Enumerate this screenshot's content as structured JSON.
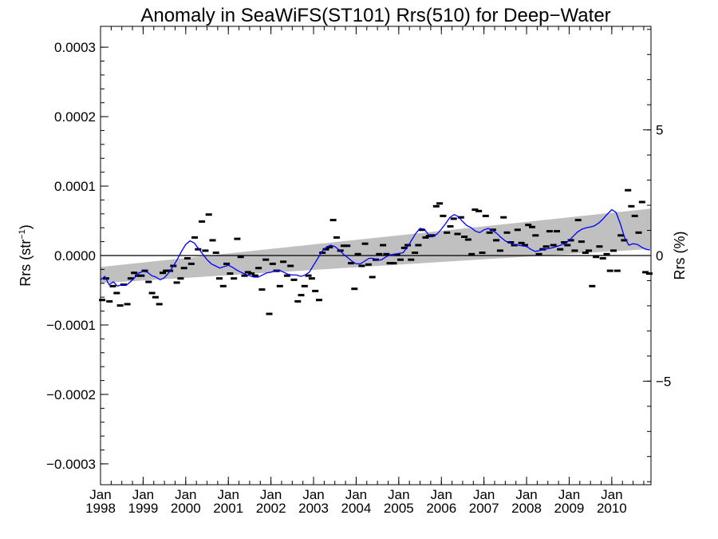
{
  "chart_data": {
    "type": "scatter",
    "title": "Anomaly in SeaWiFS(ST101) Rrs(510) for Deep−Water",
    "ylabel_left": "Rrs (str",
    "ylabel_left_sup": "−1",
    "ylabel_left_close": ")",
    "ylabel_right": "Rrs (%)",
    "xlim": [
      1998.0,
      2010.92
    ],
    "ylim": [
      -0.00033,
      0.00033
    ],
    "ylim_right": [
      -9.12,
      9.12
    ],
    "grid": false,
    "x_ticks": [
      {
        "x": 1998,
        "month": "Jan",
        "year": "1998"
      },
      {
        "x": 1999,
        "month": "Jan",
        "year": "1999"
      },
      {
        "x": 2000,
        "month": "Jan",
        "year": "2000"
      },
      {
        "x": 2001,
        "month": "Jan",
        "year": "2001"
      },
      {
        "x": 2002,
        "month": "Jan",
        "year": "2002"
      },
      {
        "x": 2003,
        "month": "Jan",
        "year": "2003"
      },
      {
        "x": 2004,
        "month": "Jan",
        "year": "2004"
      },
      {
        "x": 2005,
        "month": "Jan",
        "year": "2005"
      },
      {
        "x": 2006,
        "month": "Jan",
        "year": "2006"
      },
      {
        "x": 2007,
        "month": "Jan",
        "year": "2007"
      },
      {
        "x": 2008,
        "month": "Jan",
        "year": "2008"
      },
      {
        "x": 2009,
        "month": "Jan",
        "year": "2009"
      },
      {
        "x": 2010,
        "month": "Jan",
        "year": "2010"
      }
    ],
    "y_ticks_left": [
      {
        "value": 0.0003,
        "label": "0.0003"
      },
      {
        "value": 0.0002,
        "label": "0.0002"
      },
      {
        "value": 0.0001,
        "label": "0.0001"
      },
      {
        "value": 0.0,
        "label": "0.0000"
      },
      {
        "value": -0.0001,
        "label": "−0.0001"
      },
      {
        "value": -0.0002,
        "label": "−0.0002"
      },
      {
        "value": -0.0003,
        "label": "−0.0003"
      }
    ],
    "y_ticks_right": [
      {
        "value": 5,
        "label": "5"
      },
      {
        "value": 0,
        "label": "0"
      },
      {
        "value": -5,
        "label": "−5"
      }
    ],
    "trend_band": {
      "x": [
        1998.0,
        2010.92
      ],
      "lower": [
        -3.98e-05,
        9.5e-06
      ],
      "upper": [
        -1.65e-05,
        6.75e-05
      ],
      "color": "#c0c0c0"
    },
    "zero_line": 0,
    "series": [
      {
        "kind": "points",
        "color": "#000000",
        "x": [
          1998.04,
          1998.13,
          1998.21,
          1998.29,
          1998.38,
          1998.46,
          1998.54,
          1998.63,
          1998.71,
          1998.79,
          1998.88,
          1998.96,
          1999.04,
          1999.13,
          1999.21,
          1999.29,
          1999.38,
          1999.46,
          1999.54,
          1999.63,
          1999.71,
          1999.79,
          1999.88,
          1999.96,
          2000.04,
          2000.13,
          2000.21,
          2000.29,
          2000.38,
          2000.46,
          2000.54,
          2000.63,
          2000.71,
          2000.79,
          2000.88,
          2000.96,
          2001.04,
          2001.13,
          2001.21,
          2001.29,
          2001.38,
          2001.46,
          2001.54,
          2001.63,
          2001.71,
          2001.79,
          2001.88,
          2001.96,
          2002.04,
          2002.13,
          2002.21,
          2002.29,
          2002.38,
          2002.46,
          2002.54,
          2002.63,
          2002.71,
          2002.79,
          2002.88,
          2002.96,
          2003.04,
          2003.13,
          2003.21,
          2003.29,
          2003.38,
          2003.46,
          2003.54,
          2003.63,
          2003.71,
          2003.79,
          2003.88,
          2003.96,
          2004.04,
          2004.13,
          2004.21,
          2004.29,
          2004.38,
          2004.46,
          2004.54,
          2004.63,
          2004.71,
          2004.79,
          2004.88,
          2004.96,
          2005.04,
          2005.13,
          2005.21,
          2005.29,
          2005.38,
          2005.46,
          2005.54,
          2005.63,
          2005.71,
          2005.79,
          2005.88,
          2005.96,
          2006.04,
          2006.13,
          2006.21,
          2006.29,
          2006.38,
          2006.46,
          2006.54,
          2006.63,
          2006.71,
          2006.79,
          2006.88,
          2006.96,
          2007.04,
          2007.13,
          2007.21,
          2007.29,
          2007.38,
          2007.46,
          2007.54,
          2007.63,
          2007.71,
          2007.79,
          2007.88,
          2007.96,
          2008.04,
          2008.13,
          2008.21,
          2008.29,
          2008.38,
          2008.46,
          2008.54,
          2008.63,
          2008.71,
          2008.79,
          2008.88,
          2008.96,
          2009.04,
          2009.13,
          2009.21,
          2009.29,
          2009.38,
          2009.46,
          2009.54,
          2009.63,
          2009.71,
          2009.79,
          2009.88,
          2009.96,
          2010.04,
          2010.13,
          2010.21,
          2010.29,
          2010.38,
          2010.46,
          2010.54,
          2010.63,
          2010.71,
          2010.79,
          2010.88
        ],
        "y": [
          -6.4e-05,
          -3.3e-05,
          -6.6e-05,
          -4.4e-05,
          -5.4e-05,
          -7.2e-05,
          -4.2e-05,
          -7e-05,
          -3.3e-05,
          -2.5e-05,
          -2.9e-05,
          -2.9e-05,
          -2.2e-05,
          -3.8e-05,
          -5.4e-05,
          -6e-05,
          -7e-05,
          -2.5e-05,
          -2.2e-05,
          -2.2e-05,
          -1.5e-05,
          -3.9e-05,
          -3.3e-05,
          -1.8e-05,
          -4e-06,
          -1.2e-05,
          2.6e-05,
          9e-06,
          4.9e-05,
          7e-06,
          5.9e-05,
          2.2e-05,
          4e-06,
          -3.3e-05,
          -4.4e-05,
          -1.2e-05,
          -2.6e-05,
          -3.3e-05,
          2.4e-05,
          -2e-06,
          -2.9e-05,
          -2.4e-05,
          -2.6e-05,
          -2.9e-05,
          -1.8e-05,
          -4.9e-05,
          -6e-06,
          -8.4e-05,
          -1.2e-05,
          -2.2e-05,
          -4.4e-05,
          -9e-06,
          -2.9e-05,
          -1.5e-05,
          -3.5e-05,
          -6.6e-05,
          -5.7e-05,
          -4.4e-05,
          -2.9e-05,
          -3.3e-05,
          -5.1e-05,
          -6.4e-05,
          4e-06,
          9e-06,
          1.2e-05,
          5.1e-05,
          2.6e-05,
          7e-06,
          1.4e-05,
          1.4e-05,
          -1.1e-05,
          -4.8e-05,
          2e-06,
          -1.5e-05,
          1.7e-05,
          -1.3e-05,
          -3.1e-05,
          -6e-06,
          2e-06,
          1.5e-05,
          2e-06,
          -1.1e-05,
          -1.1e-05,
          1e-06,
          -6e-06,
          1.1e-05,
          1.5e-05,
          -6e-06,
          4e-06,
          1.5e-05,
          3.7e-05,
          2.6e-05,
          2.8e-05,
          2.9e-05,
          7.1e-05,
          7.5e-05,
          5.7e-05,
          3.3e-05,
          4.2e-05,
          5.3e-05,
          3.1e-05,
          5.5e-05,
          2.7e-05,
          2.3e-05,
          2e-06,
          6.6e-05,
          6.4e-05,
          4e-06,
          5.7e-05,
          3.3e-05,
          3.7e-05,
          2.2e-05,
          7e-06,
          5.5e-05,
          3.3e-05,
          1.9e-05,
          1.5e-05,
          3.7e-05,
          1.8e-05,
          1.5e-05,
          4.4e-05,
          4.1e-05,
          2.9e-05,
          2e-06,
          9e-06,
          1.3e-05,
          3.5e-05,
          1.5e-05,
          3.5e-05,
          9e-06,
          1.9e-05,
          1.5e-05,
          2.2e-05,
          7e-06,
          5.1e-05,
          2e-05,
          4e-06,
          7e-06,
          -4.4e-05,
          -2e-06,
          1.3e-05,
          -4e-06,
          2e-06,
          -2.2e-05,
          7e-06,
          -2.2e-05,
          2.9e-05,
          2.2e-05,
          9.4e-05,
          7.1e-05,
          5.7e-05,
          3.3e-05,
          7.7e-05,
          -2.4e-05,
          -2.6e-05
        ]
      },
      {
        "kind": "line",
        "color": "#0000ff",
        "x": [
          1998.0,
          1998.1,
          1998.2,
          1998.3,
          1998.4,
          1998.5,
          1998.6,
          1998.7,
          1998.8,
          1998.9,
          1999.0,
          1999.1,
          1999.2,
          1999.3,
          1999.4,
          1999.5,
          1999.6,
          1999.7,
          1999.8,
          1999.9,
          2000.0,
          2000.1,
          2000.2,
          2000.3,
          2000.4,
          2000.5,
          2000.6,
          2000.7,
          2000.8,
          2000.9,
          2001.0,
          2001.1,
          2001.2,
          2001.3,
          2001.4,
          2001.5,
          2001.6,
          2001.7,
          2001.8,
          2001.9,
          2002.0,
          2002.1,
          2002.2,
          2002.3,
          2002.4,
          2002.5,
          2002.6,
          2002.7,
          2002.8,
          2002.9,
          2003.0,
          2003.1,
          2003.2,
          2003.3,
          2003.4,
          2003.5,
          2003.6,
          2003.7,
          2003.8,
          2003.9,
          2004.0,
          2004.1,
          2004.2,
          2004.3,
          2004.4,
          2004.5,
          2004.6,
          2004.7,
          2004.8,
          2004.9,
          2005.0,
          2005.1,
          2005.2,
          2005.3,
          2005.4,
          2005.5,
          2005.6,
          2005.7,
          2005.8,
          2005.9,
          2006.0,
          2006.1,
          2006.2,
          2006.3,
          2006.4,
          2006.5,
          2006.6,
          2006.7,
          2006.8,
          2006.9,
          2007.0,
          2007.1,
          2007.2,
          2007.3,
          2007.4,
          2007.5,
          2007.6,
          2007.7,
          2007.8,
          2007.9,
          2008.0,
          2008.1,
          2008.2,
          2008.3,
          2008.4,
          2008.5,
          2008.6,
          2008.7,
          2008.8,
          2008.9,
          2009.0,
          2009.1,
          2009.2,
          2009.3,
          2009.4,
          2009.5,
          2009.6,
          2009.7,
          2009.8,
          2009.9,
          2010.0,
          2010.1,
          2010.2,
          2010.3,
          2010.4,
          2010.5,
          2010.6,
          2010.7,
          2010.8,
          2010.9
        ],
        "y": [
          -3.5e-05,
          -3e-05,
          -4.2e-05,
          -3.8e-05,
          -4.4e-05,
          -4.2e-05,
          -4.3e-05,
          -3.8e-05,
          -3.2e-05,
          -2.5e-05,
          -2.3e-05,
          -2.4e-05,
          -2.9e-05,
          -3.1e-05,
          -3.5e-05,
          -3.2e-05,
          -2.5e-05,
          -1.6e-05,
          -6e-06,
          6e-06,
          1.6e-05,
          2.1e-05,
          1.8e-05,
          1e-05,
          2e-06,
          -6e-06,
          -1.2e-05,
          -1.5e-05,
          -1.8e-05,
          -1.6e-05,
          -1.4e-05,
          -1.7e-05,
          -2.1e-05,
          -2.4e-05,
          -2.7e-05,
          -2.9e-05,
          -3.1e-05,
          -3.1e-05,
          -2.8e-05,
          -2.5e-05,
          -2.4e-05,
          -2.2e-05,
          -2.1e-05,
          -2.4e-05,
          -2.7e-05,
          -2.8e-05,
          -2.8e-05,
          -3e-05,
          -2.8e-05,
          -2.4e-05,
          -1.4e-05,
          -4e-06,
          6e-06,
          1.2e-05,
          1.5e-05,
          1.3e-05,
          8e-06,
          2e-06,
          -3e-06,
          -8e-06,
          -1.2e-05,
          -1.2e-05,
          -8e-06,
          -4e-06,
          -4e-06,
          -7e-06,
          -6e-06,
          -2e-06,
          1e-06,
          2e-06,
          3e-06,
          4e-06,
          1.2e-05,
          2.2e-05,
          3.2e-05,
          3.9e-05,
          3.8e-05,
          3e-05,
          2.7e-05,
          3.1e-05,
          3.8e-05,
          4.6e-05,
          5.5e-05,
          5.9e-05,
          5.6e-05,
          4.9e-05,
          4.3e-05,
          4e-05,
          3.5e-05,
          3.3e-05,
          3.7e-05,
          3.9e-05,
          3.6e-05,
          3.2e-05,
          2.6e-05,
          2.1e-05,
          1.8e-05,
          1.6e-05,
          1.5e-05,
          1.4e-05,
          1.3e-05,
          9e-06,
          6e-06,
          7e-06,
          9e-06,
          1e-05,
          1.1e-05,
          1.3e-05,
          1.5e-05,
          1.7e-05,
          2.2e-05,
          2.8e-05,
          3.4e-05,
          3.8e-05,
          4e-05,
          4.1e-05,
          4.3e-05,
          4.7e-05,
          5.3e-05,
          6e-05,
          6.6e-05,
          6.2e-05,
          4.6e-05,
          2.6e-05,
          1.5e-05,
          1.7e-05,
          1.6e-05,
          1.2e-05,
          9e-06,
          8e-06
        ]
      }
    ]
  }
}
